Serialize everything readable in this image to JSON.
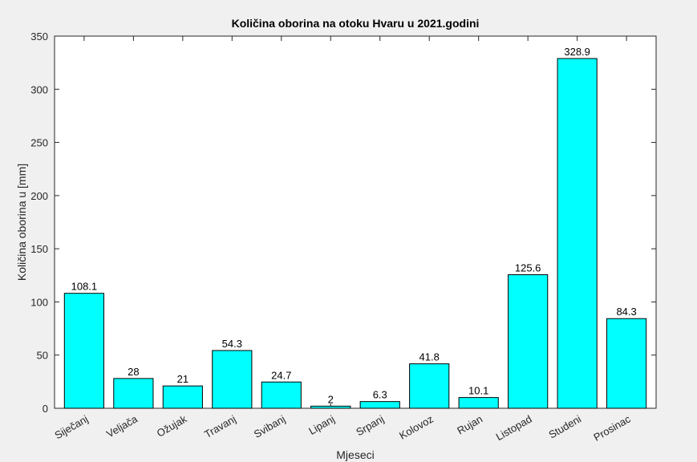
{
  "chart_data": {
    "type": "bar",
    "title": "Količina oborina na otoku Hvaru u 2021.godini",
    "xlabel": "Mjeseci",
    "ylabel": "Količina oborina u [mm]",
    "categories": [
      "Siječanj",
      "Veljača",
      "Ožujak",
      "Travanj",
      "Svibanj",
      "Lipanj",
      "Srpanj",
      "Kolovoz",
      "Rujan",
      "Listopad",
      "Studeni",
      "Prosinac"
    ],
    "values": [
      108.1,
      28,
      21,
      54.3,
      24.7,
      2,
      6.3,
      41.8,
      10.1,
      125.6,
      328.9,
      84.3
    ],
    "color": "#00ffff",
    "ylim": [
      0,
      350
    ],
    "yticks": [
      0,
      50,
      100,
      150,
      200,
      250,
      300,
      350
    ],
    "grid": false
  }
}
